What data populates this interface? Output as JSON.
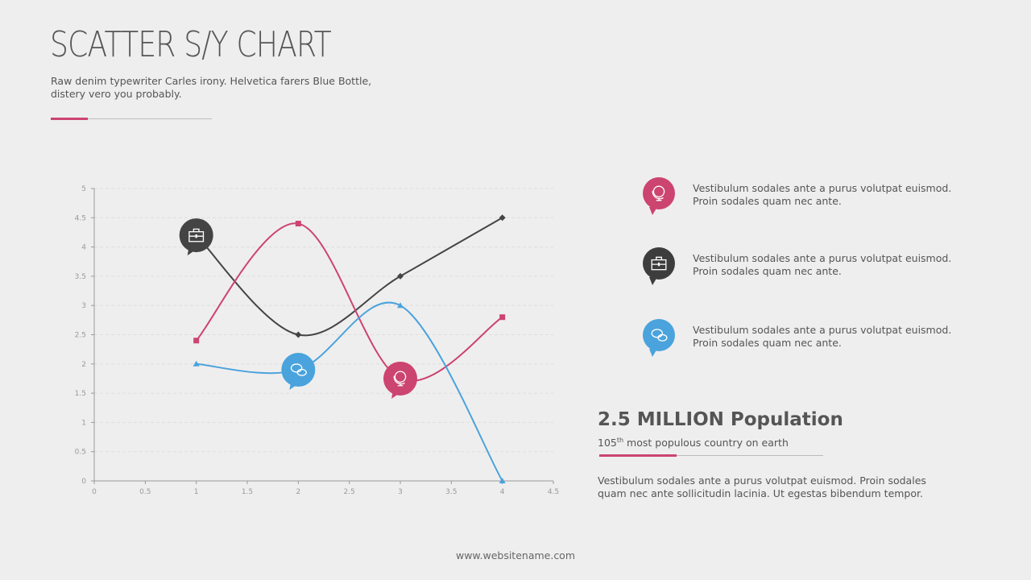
{
  "header": {
    "title": "SCATTER S/Y CHART",
    "subtitle": "Raw denim typewriter Carles irony. Helvetica farers Blue Bottle, distery vero you probably."
  },
  "colors": {
    "pink": "#cc4470",
    "dark": "#444444",
    "blue": "#4aa3dc",
    "accent": "#cc4470"
  },
  "chart_data": {
    "type": "scatter",
    "smooth": true,
    "xlim": [
      0,
      4.5
    ],
    "ylim": [
      0,
      5
    ],
    "xticks": [
      "0",
      "0.5",
      "1",
      "1.5",
      "2",
      "2.5",
      "3",
      "3.5",
      "4",
      "4.5"
    ],
    "yticks": [
      "0",
      "0.5",
      "1",
      "1.5",
      "2",
      "2.5",
      "3",
      "3.5",
      "4",
      "4.5",
      "5"
    ],
    "grid": true,
    "series": [
      {
        "color": "#444444",
        "marker": "diamond",
        "icon": "briefcase-icon",
        "x": [
          1,
          2,
          3,
          4
        ],
        "y": [
          4.2,
          2.5,
          3.5,
          4.5
        ]
      },
      {
        "color": "#cc4470",
        "marker": "square",
        "icon": "globe-icon",
        "x": [
          1,
          2,
          3,
          4
        ],
        "y": [
          2.4,
          4.4,
          1.75,
          2.8
        ]
      },
      {
        "color": "#4aa3dc",
        "marker": "triangle",
        "icon": "chat-icon",
        "x": [
          1,
          2,
          3,
          4
        ],
        "y": [
          2,
          1.9,
          3,
          0
        ]
      }
    ]
  },
  "legend": [
    {
      "icon": "globe-icon",
      "color": "#cc4470",
      "text": "Vestibulum sodales ante a purus volutpat euismod. Proin sodales quam nec ante."
    },
    {
      "icon": "briefcase-icon",
      "color": "#3d3d3d",
      "text": "Vestibulum sodales ante a purus volutpat euismod. Proin sodales quam nec ante."
    },
    {
      "icon": "chat-icon",
      "color": "#4aa3dc",
      "text": "Vestibulum sodales ante a purus volutpat euismod. Proin sodales quam nec ante."
    }
  ],
  "stat": {
    "title": "2.5 MILLION Population",
    "sub_num": "105",
    "sub_sup": "th",
    "sub_rest": " most populous country on earth",
    "body": "Vestibulum sodales ante a purus volutpat euismod. Proin sodales quam nec ante sollicitudin lacinia. Ut egestas bibendum tempor."
  },
  "footer": {
    "url": "www.websitename.com"
  }
}
